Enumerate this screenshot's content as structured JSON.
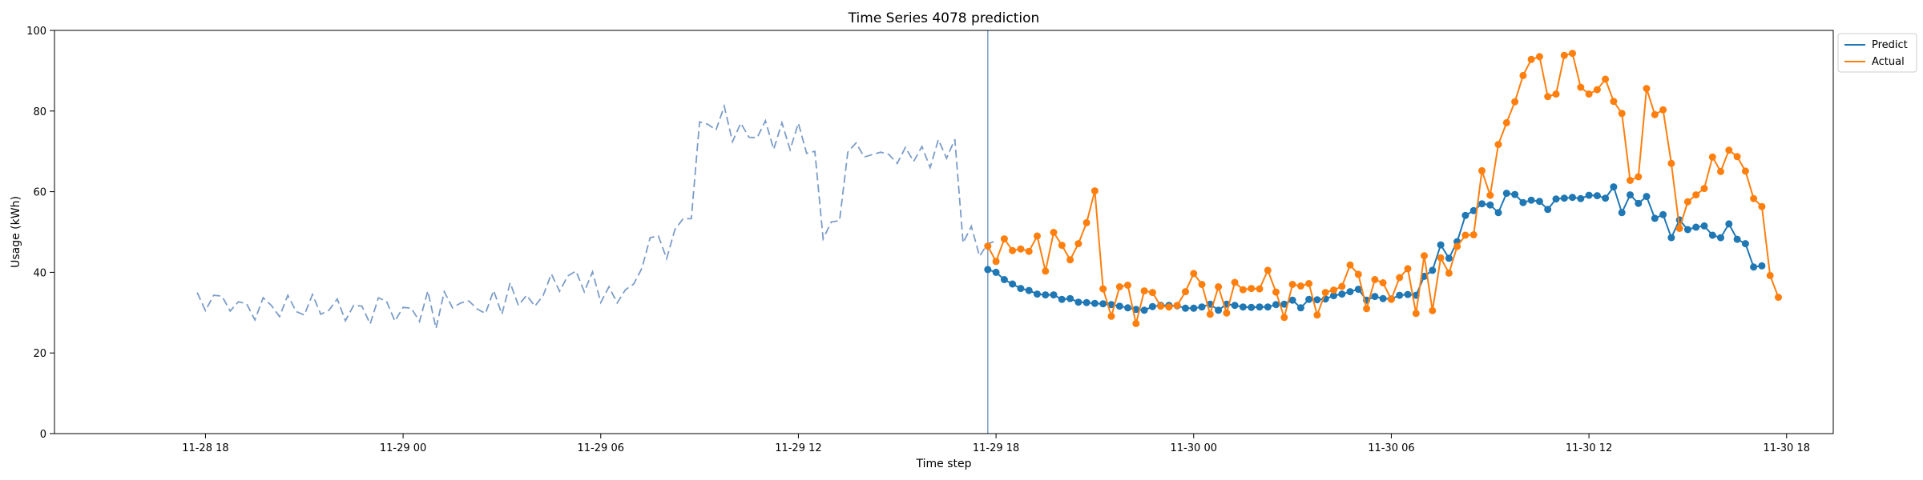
{
  "chart_data": {
    "type": "line",
    "title": "Time Series 4078 prediction",
    "xlabel": "Time step",
    "ylabel": "Usage (kWh)",
    "xlim": [
      "2024-11-28T13:25",
      "2024-11-30T19:25"
    ],
    "ylim": [
      0,
      100
    ],
    "x_ticks": [
      {
        "t": "2024-11-28T18:00",
        "label": "11-28 18"
      },
      {
        "t": "2024-11-29T00:00",
        "label": "11-29 00"
      },
      {
        "t": "2024-11-29T06:00",
        "label": "11-29 06"
      },
      {
        "t": "2024-11-29T12:00",
        "label": "11-29 12"
      },
      {
        "t": "2024-11-29T18:00",
        "label": "11-29 18"
      },
      {
        "t": "2024-11-30T00:00",
        "label": "11-30 00"
      },
      {
        "t": "2024-11-30T06:00",
        "label": "11-30 06"
      },
      {
        "t": "2024-11-30T12:00",
        "label": "11-30 12"
      },
      {
        "t": "2024-11-30T18:00",
        "label": "11-30 18"
      }
    ],
    "y_ticks": [
      0,
      20,
      40,
      60,
      80,
      100
    ],
    "split_time": "2024-11-29T17:45",
    "interval_minutes": 15,
    "legend": {
      "position": "outside-top-right",
      "entries": [
        "Predict",
        "Actual"
      ]
    },
    "grid": false,
    "colors": {
      "history": "#7b9cc8",
      "predict": "#1f77b4",
      "actual": "#ff7f0e",
      "split_line": "#7b9cc8"
    },
    "series": [
      {
        "style": "dashed",
        "color_key": "history",
        "start": "2024-11-28T17:45",
        "values": [
          35.0,
          30.5,
          34.3,
          34.1,
          30.4,
          32.7,
          32.2,
          28.2,
          33.7,
          31.8,
          29.0,
          34.3,
          30.3,
          29.4,
          34.5,
          29.6,
          30.6,
          33.4,
          28.0,
          31.8,
          31.6,
          27.2,
          33.7,
          32.8,
          27.9,
          31.3,
          31.1,
          27.8,
          35.4,
          26.1,
          35.2,
          31.2,
          32.4,
          32.9,
          30.9,
          29.8,
          35.5,
          29.6,
          37.4,
          31.8,
          34.3,
          31.6,
          34.2,
          39.6,
          35.3,
          39.1,
          40.3,
          35.2,
          40.1,
          32.5,
          36.4,
          32.4,
          35.7,
          37.1,
          41.0,
          48.6,
          49.0,
          43.4,
          50.6,
          53.3,
          53.3,
          77.3,
          76.7,
          75.3,
          81.2,
          72.4,
          77.0,
          73.5,
          73.4,
          77.6,
          70.5,
          77.1,
          70.4,
          77.0,
          69.5,
          70.0,
          48.3,
          52.5,
          52.8,
          69.8,
          72.1,
          68.6,
          69.2,
          69.8,
          69.2,
          67.0,
          71.0,
          67.5,
          71.2,
          66.0,
          72.9,
          68.3,
          73.0,
          47.3,
          51.4,
          44.0,
          47.1,
          47.8
        ]
      },
      {
        "name": "Predict",
        "style": "solid-markers",
        "color_key": "predict",
        "start": "2024-11-29T17:45",
        "values": [
          40.7,
          40.0,
          38.2,
          37.1,
          36.0,
          35.5,
          34.6,
          34.4,
          34.4,
          33.3,
          33.5,
          32.6,
          32.5,
          32.3,
          32.2,
          32.0,
          31.6,
          31.2,
          30.8,
          30.6,
          31.5,
          31.8,
          31.8,
          31.7,
          31.1,
          31.1,
          31.4,
          32.1,
          30.6,
          32.1,
          31.8,
          31.4,
          31.3,
          31.4,
          31.4,
          32.0,
          32.1,
          33.1,
          31.2,
          33.3,
          33.2,
          33.4,
          34.2,
          34.6,
          35.2,
          35.8,
          33.1,
          34.0,
          33.5,
          33.4,
          34.3,
          34.5,
          34.3,
          39.0,
          40.5,
          46.8,
          43.5,
          47.6,
          54.1,
          55.3,
          57.0,
          56.7,
          54.8,
          59.6,
          59.3,
          57.3,
          57.9,
          57.6,
          55.6,
          58.2,
          58.4,
          58.6,
          58.3,
          59.1,
          59.0,
          58.4,
          61.2,
          54.8,
          59.2,
          57.1,
          58.8,
          53.4,
          54.3,
          48.6,
          53.0,
          50.6,
          51.2,
          51.5,
          49.2,
          48.6,
          52.0,
          48.2,
          47.1,
          41.3,
          41.6
        ]
      },
      {
        "name": "Actual",
        "style": "solid-markers",
        "color_key": "actual",
        "start": "2024-11-29T17:45",
        "values": [
          46.5,
          42.7,
          48.3,
          45.4,
          45.8,
          45.2,
          49.0,
          40.3,
          49.9,
          46.7,
          43.1,
          47.1,
          52.3,
          60.2,
          35.9,
          29.1,
          36.4,
          36.8,
          27.3,
          35.4,
          35.0,
          31.6,
          31.4,
          31.8,
          35.2,
          39.7,
          37.0,
          29.6,
          36.4,
          29.9,
          37.5,
          35.7,
          36.0,
          35.9,
          40.5,
          35.1,
          28.8,
          37.0,
          36.6,
          37.2,
          29.4,
          35.0,
          35.6,
          36.5,
          41.8,
          39.5,
          31.0,
          38.2,
          37.4,
          33.3,
          38.7,
          40.9,
          29.8,
          44.1,
          30.5,
          43.6,
          39.8,
          46.4,
          49.2,
          49.3,
          65.2,
          59.1,
          71.7,
          77.1,
          82.3,
          88.8,
          92.8,
          93.5,
          83.6,
          84.2,
          93.8,
          94.3,
          85.9,
          84.2,
          85.3,
          87.9,
          82.4,
          79.4,
          62.8,
          63.7,
          85.6,
          79.1,
          80.3,
          67.0,
          50.9,
          57.5,
          59.2,
          60.8,
          68.6,
          65.0,
          70.3,
          68.7,
          65.1,
          58.3,
          56.3,
          39.2,
          33.8
        ]
      }
    ]
  }
}
